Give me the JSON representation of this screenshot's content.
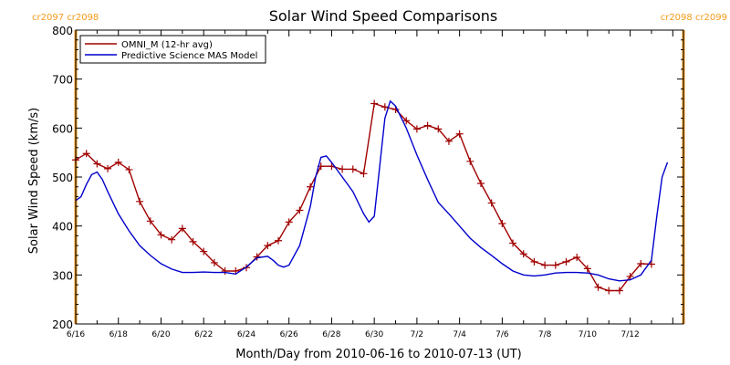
{
  "chart_data": {
    "type": "line",
    "title": "Solar Wind Speed Comparisons",
    "xlabel": "Month/Day from 2010-06-16 to 2010-07-13 (UT)",
    "ylabel": "Solar Wind Speed (km/s)",
    "x_unit": "date (UT)",
    "xlim": [
      "2010-06-16T00:00",
      "2010-07-14T12:00"
    ],
    "ylim": [
      200,
      800
    ],
    "yticks": [
      200,
      300,
      400,
      500,
      600,
      700,
      800
    ],
    "xtick_labels": [
      "6/16",
      "6/18",
      "6/20",
      "6/22",
      "6/24",
      "6/26",
      "6/28",
      "6/30",
      "7/2",
      "7/4",
      "7/6",
      "7/8",
      "7/10",
      "7/12"
    ],
    "legend": {
      "placement": "top-left",
      "entries": [
        {
          "label": "OMNI_M (12-hr avg)",
          "color": "#a00000"
        },
        {
          "label": "Predictive Science MAS Model",
          "color": "#0000cc"
        }
      ]
    },
    "carrington_markers": [
      {
        "x": "2010-06-16T00:00",
        "label": "cr2097 cr2098",
        "color": "#f59a1a"
      },
      {
        "x": "2010-07-14T12:00",
        "label": "cr2098 cr2099",
        "color": "#f59a1a"
      }
    ],
    "series": [
      {
        "name": "OMNI_M (12-hr avg)",
        "color": "#a00000",
        "marker": "plus",
        "points": [
          [
            "2010-06-16T00:00",
            535
          ],
          [
            "2010-06-16T12:00",
            548
          ],
          [
            "2010-06-17T00:00",
            527
          ],
          [
            "2010-06-17T12:00",
            517
          ],
          [
            "2010-06-18T00:00",
            530
          ],
          [
            "2010-06-18T12:00",
            515
          ],
          [
            "2010-06-19T00:00",
            450
          ],
          [
            "2010-06-19T12:00",
            410
          ],
          [
            "2010-06-20T00:00",
            382
          ],
          [
            "2010-06-20T12:00",
            372
          ],
          [
            "2010-06-21T00:00",
            395
          ],
          [
            "2010-06-21T12:00",
            368
          ],
          [
            "2010-06-22T00:00",
            348
          ],
          [
            "2010-06-22T12:00",
            325
          ],
          [
            "2010-06-23T00:00",
            308
          ],
          [
            "2010-06-23T12:00",
            308
          ],
          [
            "2010-06-24T00:00",
            315
          ],
          [
            "2010-06-24T12:00",
            337
          ],
          [
            "2010-06-25T00:00",
            360
          ],
          [
            "2010-06-25T12:00",
            370
          ],
          [
            "2010-06-26T00:00",
            408
          ],
          [
            "2010-06-26T12:00",
            432
          ],
          [
            "2010-06-27T00:00",
            480
          ],
          [
            "2010-06-27T12:00",
            522
          ],
          [
            "2010-06-28T00:00",
            522
          ],
          [
            "2010-06-28T12:00",
            516
          ],
          [
            "2010-06-29T00:00",
            516
          ],
          [
            "2010-06-29T12:00",
            507
          ],
          [
            "2010-06-30T00:00",
            650
          ],
          [
            "2010-06-30T12:00",
            643
          ],
          [
            "2010-07-01T00:00",
            638
          ],
          [
            "2010-07-01T12:00",
            615
          ],
          [
            "2010-07-02T00:00",
            598
          ],
          [
            "2010-07-02T12:00",
            605
          ],
          [
            "2010-07-03T00:00",
            598
          ],
          [
            "2010-07-03T12:00",
            573
          ],
          [
            "2010-07-04T00:00",
            588
          ],
          [
            "2010-07-04T12:00",
            532
          ],
          [
            "2010-07-05T00:00",
            487
          ],
          [
            "2010-07-05T12:00",
            447
          ],
          [
            "2010-07-06T00:00",
            405
          ],
          [
            "2010-07-06T12:00",
            365
          ],
          [
            "2010-07-07T00:00",
            343
          ],
          [
            "2010-07-07T12:00",
            327
          ],
          [
            "2010-07-08T00:00",
            320
          ],
          [
            "2010-07-08T12:00",
            320
          ],
          [
            "2010-07-09T00:00",
            327
          ],
          [
            "2010-07-09T12:00",
            336
          ],
          [
            "2010-07-10T00:00",
            313
          ],
          [
            "2010-07-10T12:00",
            275
          ],
          [
            "2010-07-11T00:00",
            268
          ],
          [
            "2010-07-11T12:00",
            268
          ],
          [
            "2010-07-12T00:00",
            297
          ],
          [
            "2010-07-12T12:00",
            323
          ],
          [
            "2010-07-13T00:00",
            322
          ]
        ]
      },
      {
        "name": "Predictive Science MAS Model",
        "color": "#0000cc",
        "marker": "none",
        "points": [
          [
            "2010-06-16T00:00",
            452
          ],
          [
            "2010-06-16T06:00",
            460
          ],
          [
            "2010-06-16T12:00",
            485
          ],
          [
            "2010-06-16T18:00",
            505
          ],
          [
            "2010-06-17T00:00",
            510
          ],
          [
            "2010-06-17T06:00",
            495
          ],
          [
            "2010-06-17T12:00",
            470
          ],
          [
            "2010-06-18T00:00",
            425
          ],
          [
            "2010-06-18T12:00",
            390
          ],
          [
            "2010-06-19T00:00",
            360
          ],
          [
            "2010-06-19T12:00",
            340
          ],
          [
            "2010-06-20T00:00",
            323
          ],
          [
            "2010-06-20T12:00",
            312
          ],
          [
            "2010-06-21T00:00",
            305
          ],
          [
            "2010-06-21T12:00",
            305
          ],
          [
            "2010-06-22T00:00",
            306
          ],
          [
            "2010-06-22T12:00",
            305
          ],
          [
            "2010-06-23T00:00",
            305
          ],
          [
            "2010-06-23T12:00",
            302
          ],
          [
            "2010-06-24T00:00",
            316
          ],
          [
            "2010-06-24T12:00",
            335
          ],
          [
            "2010-06-25T00:00",
            338
          ],
          [
            "2010-06-25T06:00",
            330
          ],
          [
            "2010-06-25T12:00",
            320
          ],
          [
            "2010-06-25T18:00",
            316
          ],
          [
            "2010-06-26T00:00",
            320
          ],
          [
            "2010-06-26T12:00",
            360
          ],
          [
            "2010-06-27T00:00",
            440
          ],
          [
            "2010-06-27T06:00",
            500
          ],
          [
            "2010-06-27T12:00",
            540
          ],
          [
            "2010-06-27T18:00",
            543
          ],
          [
            "2010-06-28T00:00",
            530
          ],
          [
            "2010-06-28T12:00",
            500
          ],
          [
            "2010-06-29T00:00",
            470
          ],
          [
            "2010-06-29T12:00",
            425
          ],
          [
            "2010-06-29T18:00",
            408
          ],
          [
            "2010-06-30T00:00",
            420
          ],
          [
            "2010-06-30T06:00",
            520
          ],
          [
            "2010-06-30T12:00",
            620
          ],
          [
            "2010-06-30T18:00",
            655
          ],
          [
            "2010-07-01T00:00",
            645
          ],
          [
            "2010-07-01T12:00",
            600
          ],
          [
            "2010-07-02T00:00",
            545
          ],
          [
            "2010-07-02T12:00",
            495
          ],
          [
            "2010-07-03T00:00",
            448
          ],
          [
            "2010-07-03T12:00",
            425
          ],
          [
            "2010-07-04T00:00",
            400
          ],
          [
            "2010-07-04T12:00",
            375
          ],
          [
            "2010-07-05T00:00",
            356
          ],
          [
            "2010-07-05T12:00",
            340
          ],
          [
            "2010-07-06T00:00",
            323
          ],
          [
            "2010-07-06T12:00",
            308
          ],
          [
            "2010-07-07T00:00",
            300
          ],
          [
            "2010-07-07T12:00",
            298
          ],
          [
            "2010-07-08T00:00",
            300
          ],
          [
            "2010-07-08T12:00",
            304
          ],
          [
            "2010-07-09T00:00",
            305
          ],
          [
            "2010-07-09T12:00",
            305
          ],
          [
            "2010-07-10T00:00",
            304
          ],
          [
            "2010-07-10T12:00",
            300
          ],
          [
            "2010-07-11T00:00",
            292
          ],
          [
            "2010-07-11T12:00",
            288
          ],
          [
            "2010-07-12T00:00",
            290
          ],
          [
            "2010-07-12T12:00",
            300
          ],
          [
            "2010-07-13T00:00",
            330
          ],
          [
            "2010-07-13T06:00",
            420
          ],
          [
            "2010-07-13T12:00",
            500
          ],
          [
            "2010-07-13T18:00",
            530
          ]
        ]
      }
    ]
  }
}
